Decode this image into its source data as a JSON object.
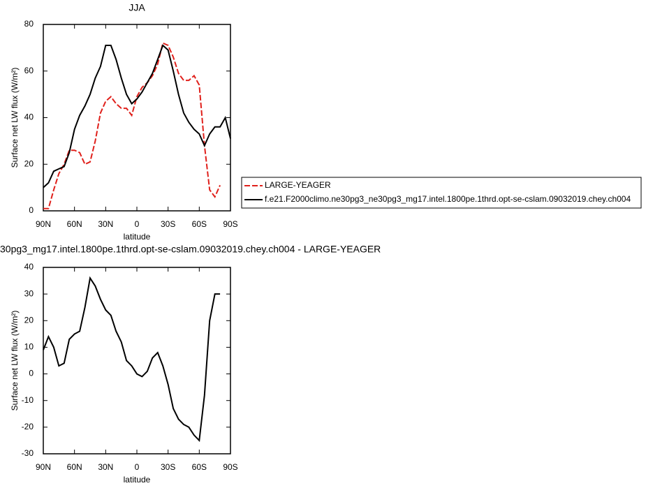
{
  "chart_data": [
    {
      "type": "line",
      "title": "JJA",
      "x_label": "latitude",
      "y_label": "Surface net LW flux (W/m²)",
      "x": [
        90,
        85,
        80,
        75,
        70,
        65,
        60,
        55,
        50,
        45,
        40,
        35,
        30,
        25,
        20,
        15,
        10,
        5,
        0,
        -5,
        -10,
        -15,
        -20,
        -25,
        -30,
        -35,
        -40,
        -45,
        -50,
        -55,
        -60,
        -65,
        -70,
        -75,
        -80,
        -85,
        -90
      ],
      "series": [
        {
          "name": "LARGE-YEAGER",
          "color": "#e0201b",
          "dash": true,
          "values": [
            1,
            1,
            9,
            16,
            20,
            26,
            26,
            25,
            20,
            21,
            30,
            42,
            47,
            49,
            46,
            44,
            44,
            41,
            49,
            53,
            55,
            58,
            63,
            72,
            71,
            66,
            59,
            56,
            56,
            58,
            54,
            28,
            9,
            6,
            11,
            null,
            null
          ]
        },
        {
          "name": "f.e21.F2000climo.ne30pg3_ne30pg3_mg17.intel.1800pe.1thrd.opt-se-cslam.09032019.chey.ch004",
          "color": "#000000",
          "dash": false,
          "values": [
            10,
            12,
            17,
            18,
            19,
            25,
            35,
            41,
            45,
            50,
            57,
            62,
            71,
            71,
            65,
            57,
            50,
            46,
            48,
            51,
            55,
            59,
            65,
            71,
            69,
            60,
            50,
            42,
            38,
            35,
            33,
            28,
            33,
            36,
            36,
            40,
            31
          ]
        }
      ],
      "xlim": [
        90,
        -90
      ],
      "xticks": [
        {
          "value": 90,
          "label": "90N"
        },
        {
          "value": 60,
          "label": "60N"
        },
        {
          "value": 30,
          "label": "30N"
        },
        0,
        {
          "value": -30,
          "label": "30S"
        },
        {
          "value": -60,
          "label": "60S"
        },
        {
          "value": -90,
          "label": "90S"
        }
      ],
      "ylim": [
        0,
        80
      ],
      "yticks": [
        0,
        20,
        40,
        60,
        80
      ],
      "legend": "right"
    },
    {
      "type": "line",
      "title": "30pg3_mg17.intel.1800pe.1thrd.opt-se-cslam.09032019.chey.ch004 - LARGE-YEAGER",
      "x_label": "latitude",
      "y_label": "Surface net LW flux (W/m²)",
      "x": [
        90,
        85,
        80,
        75,
        70,
        65,
        60,
        55,
        50,
        45,
        40,
        35,
        30,
        25,
        20,
        15,
        10,
        5,
        0,
        -5,
        -10,
        -15,
        -20,
        -25,
        -30,
        -35,
        -40,
        -45,
        -50,
        -55,
        -60,
        -65,
        -70,
        -75,
        -80,
        -85,
        -90
      ],
      "series": [
        {
          "color": "#000000",
          "dash": false,
          "values": [
            9,
            14,
            10,
            3,
            4,
            13,
            15,
            16,
            25,
            36,
            33,
            28,
            24,
            22,
            16,
            12,
            5,
            3,
            0,
            -1,
            1,
            6,
            8,
            3,
            -4,
            -13,
            -17,
            -19,
            -20,
            -23,
            -25,
            -8,
            20,
            30,
            30,
            null,
            null
          ]
        }
      ],
      "xlim": [
        90,
        -90
      ],
      "xticks": [
        {
          "value": 90,
          "label": "90N"
        },
        {
          "value": 60,
          "label": "60N"
        },
        {
          "value": 30,
          "label": "30N"
        },
        0,
        {
          "value": -30,
          "label": "30S"
        },
        {
          "value": -60,
          "label": "60S"
        },
        {
          "value": -90,
          "label": "90S"
        }
      ],
      "ylim": [
        -30,
        40
      ],
      "yticks": [
        -30,
        -20,
        -10,
        0,
        10,
        20,
        30,
        40
      ]
    }
  ]
}
